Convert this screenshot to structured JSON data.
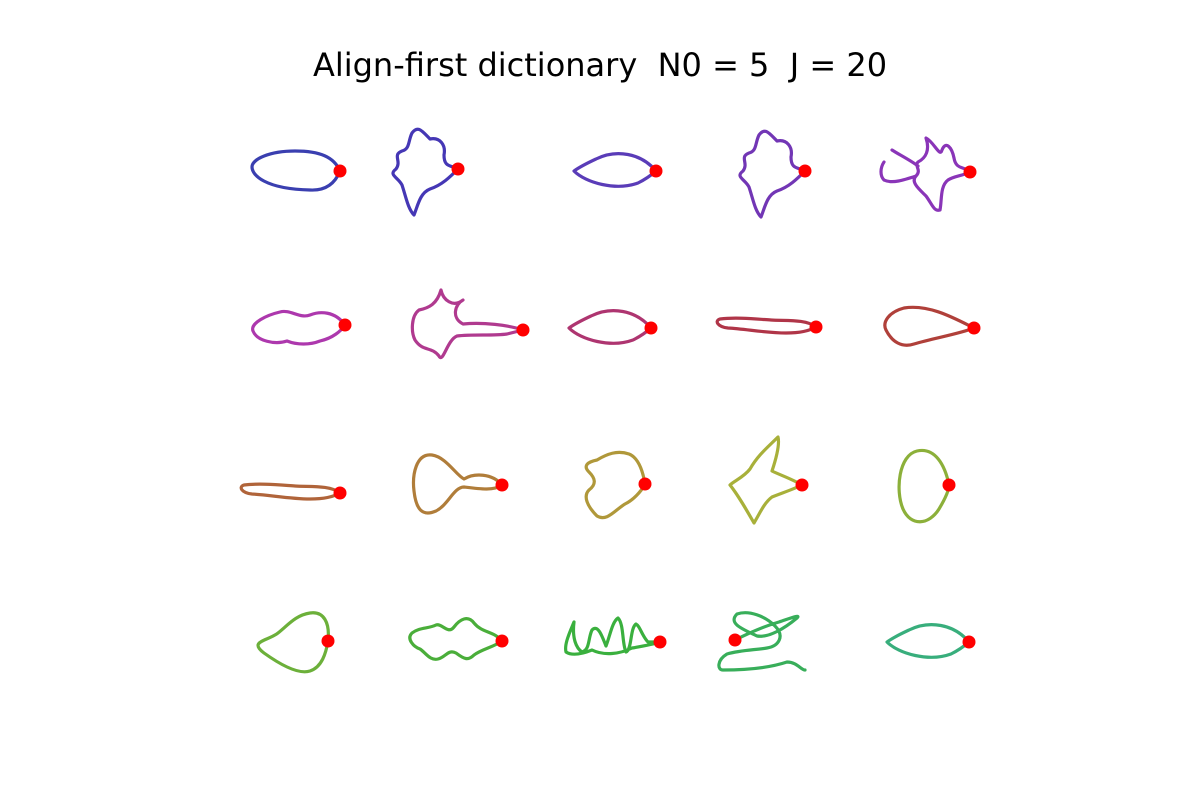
{
  "figure": {
    "title": "Align-first dictionary  N0 = 5  J = 20"
  },
  "anchor_color": "#ff0000",
  "shapes": [
    {
      "color": "#3a3fb0",
      "kind": "blob"
    },
    {
      "color": "#4537b5",
      "kind": "star"
    },
    {
      "color": "#5a3cb8",
      "kind": "lens"
    },
    {
      "color": "#7236b5",
      "kind": "star"
    },
    {
      "color": "#8a35b8",
      "kind": "fern"
    },
    {
      "color": "#ad38ad",
      "kind": "wiggly-lens"
    },
    {
      "color": "#b03a8f",
      "kind": "tangle"
    },
    {
      "color": "#ae3570",
      "kind": "lens"
    },
    {
      "color": "#b03548",
      "kind": "bar"
    },
    {
      "color": "#b0403a",
      "kind": "teardrop"
    },
    {
      "color": "#b0643a",
      "kind": "bar"
    },
    {
      "color": "#b07d3a",
      "kind": "bulb"
    },
    {
      "color": "#b0983a",
      "kind": "chevron"
    },
    {
      "color": "#a8b03a",
      "kind": "arrow"
    },
    {
      "color": "#8cb03a",
      "kind": "oval"
    },
    {
      "color": "#6cb03a",
      "kind": "pear"
    },
    {
      "color": "#4aae3a",
      "kind": "wave"
    },
    {
      "color": "#3ab03e",
      "kind": "zigzag"
    },
    {
      "color": "#38ae5a",
      "kind": "tangle"
    },
    {
      "color": "#38ae7c",
      "kind": "lens"
    }
  ]
}
